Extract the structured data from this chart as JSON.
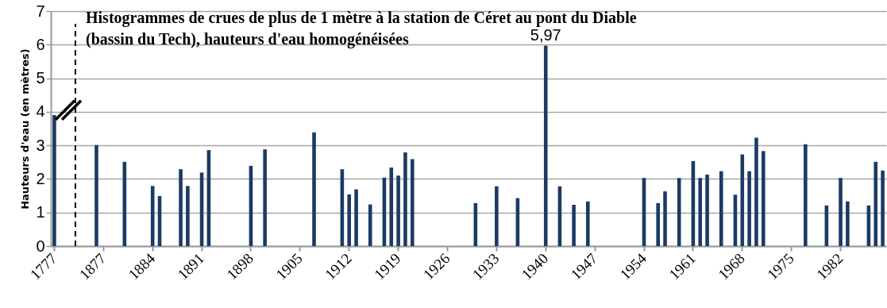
{
  "chart_data": {
    "type": "bar",
    "title": "Histogrammes de crues de plus de 1 mètre à la station de Céret au pont du Diable\n(bassin du Tech), hauteurs d'eau homogénéisées",
    "ylabel": "Hauteurs d'eau (en mètres)",
    "categories": [
      "1777",
      null,
      null,
      null,
      null,
      null,
      null,
      "1877",
      null,
      null,
      null,
      null,
      null,
      null,
      "1884",
      null,
      null,
      null,
      null,
      null,
      null,
      "1891",
      null,
      null,
      null,
      null,
      null,
      null,
      "1898",
      null,
      null,
      null,
      null,
      null,
      null,
      "1905",
      null,
      null,
      null,
      null,
      null,
      null,
      "1912",
      null,
      null,
      null,
      null,
      null,
      null,
      "1919",
      null,
      null,
      null,
      null,
      null,
      null,
      "1926",
      null,
      null,
      null,
      null,
      null,
      null,
      "1933",
      null,
      null,
      null,
      null,
      null,
      null,
      "1940",
      null,
      null,
      null,
      null,
      null,
      null,
      "1947",
      null,
      null,
      null,
      null,
      null,
      null,
      "1954",
      null,
      null,
      null,
      null,
      null,
      null,
      "1961",
      null,
      null,
      null,
      null,
      null,
      null,
      "1968",
      null,
      null,
      null,
      null,
      null,
      null,
      "1975",
      null,
      null,
      null,
      null,
      null,
      null,
      "1982",
      null,
      null,
      null,
      null,
      null,
      null
    ],
    "values": [
      3.9,
      null,
      null,
      null,
      null,
      null,
      3.01,
      null,
      null,
      null,
      2.51,
      null,
      null,
      null,
      1.79,
      1.49,
      null,
      null,
      2.29,
      1.79,
      null,
      2.19,
      2.86,
      null,
      null,
      null,
      null,
      null,
      2.39,
      null,
      2.88,
      null,
      null,
      null,
      null,
      null,
      null,
      3.39,
      null,
      null,
      null,
      2.29,
      1.54,
      1.69,
      null,
      1.24,
      null,
      2.04,
      2.34,
      2.1,
      2.79,
      2.59,
      null,
      null,
      null,
      null,
      null,
      null,
      null,
      null,
      1.28,
      null,
      null,
      1.78,
      null,
      null,
      1.43,
      null,
      null,
      null,
      5.97,
      null,
      1.78,
      null,
      1.23,
      null,
      1.33,
      null,
      null,
      null,
      null,
      null,
      null,
      null,
      2.03,
      null,
      1.28,
      1.63,
      null,
      2.03,
      null,
      2.53,
      2.03,
      2.13,
      null,
      2.23,
      null,
      1.53,
      2.73,
      2.23,
      3.23,
      2.83,
      null,
      null,
      null,
      null,
      null,
      3.03,
      null,
      null,
      1.21,
      null,
      2.03,
      1.33,
      null,
      null,
      1.21,
      2.51,
      2.25
    ],
    "value_labels": [
      null,
      null,
      null,
      null,
      null,
      null,
      null,
      null,
      null,
      null,
      null,
      null,
      null,
      null,
      null,
      null,
      null,
      null,
      null,
      null,
      null,
      null,
      null,
      null,
      null,
      null,
      null,
      null,
      null,
      null,
      null,
      null,
      null,
      null,
      null,
      null,
      null,
      null,
      null,
      null,
      null,
      null,
      null,
      null,
      null,
      null,
      null,
      null,
      null,
      null,
      null,
      null,
      null,
      null,
      null,
      null,
      null,
      null,
      null,
      null,
      null,
      null,
      null,
      null,
      null,
      null,
      null,
      null,
      null,
      null,
      "5,97",
      null,
      null,
      null,
      null,
      null,
      null,
      null,
      null,
      null,
      null,
      null,
      null,
      null,
      null,
      null,
      null,
      null,
      null,
      null,
      null,
      null,
      null,
      null,
      null,
      null,
      null,
      null,
      null,
      null,
      null,
      null,
      null,
      null,
      null,
      null,
      null,
      null,
      null,
      null,
      null,
      null,
      null,
      null,
      null,
      null,
      null,
      null,
      null
    ],
    "color": "#1c3a63",
    "ylim": [
      0,
      7
    ],
    "yticks": [
      0,
      1,
      2,
      3,
      4,
      5,
      6,
      7
    ],
    "grid": "y"
  }
}
